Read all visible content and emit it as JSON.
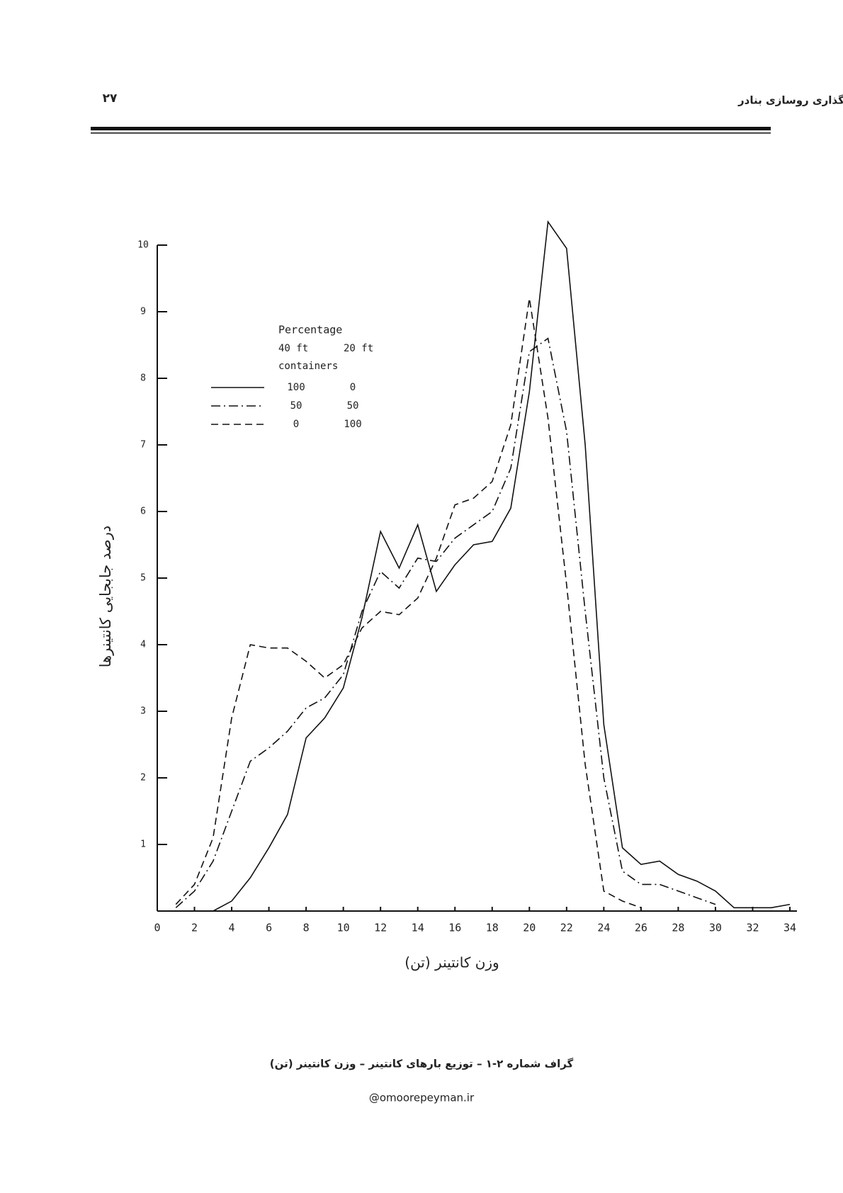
{
  "header": {
    "page_number": "۲۷",
    "title": "فصل دوم ـ بارگذاری روسازی بنادر"
  },
  "chart_data": {
    "type": "line",
    "x_label": "وزن کانتینر (تن)",
    "y_label": "درصد جابجایی کانتینرها",
    "legend": {
      "title": "Percentage",
      "columns": [
        "40 ft",
        "20 ft"
      ],
      "subtitle": "containers"
    },
    "x": [
      0,
      1,
      2,
      3,
      4,
      5,
      6,
      7,
      8,
      9,
      10,
      11,
      12,
      13,
      14,
      15,
      16,
      17,
      18,
      19,
      20,
      21,
      22,
      23,
      24,
      25,
      26,
      27,
      28,
      29,
      30,
      31,
      32,
      33,
      34
    ],
    "xlim": [
      0,
      34
    ],
    "xticks": [
      0,
      2,
      4,
      6,
      8,
      10,
      12,
      14,
      16,
      18,
      20,
      22,
      24,
      26,
      28,
      30,
      32,
      34
    ],
    "ylim": [
      0,
      10
    ],
    "yticks": [
      1,
      2,
      3,
      4,
      5,
      6,
      7,
      8,
      9,
      10
    ],
    "series": [
      {
        "labels": [
          "100",
          "0"
        ],
        "color": "#111111",
        "dash": "solid",
        "values": [
          null,
          null,
          null,
          0,
          0.15,
          0.5,
          0.95,
          1.45,
          2.6,
          2.9,
          3.35,
          4.4,
          5.7,
          5.15,
          5.8,
          4.8,
          5.2,
          5.5,
          5.55,
          6.05,
          7.8,
          10.35,
          9.95,
          7,
          2.8,
          0.95,
          0.7,
          0.75,
          0.55,
          0.45,
          0.3,
          0.05,
          0.05,
          0.05,
          0.1
        ]
      },
      {
        "labels": [
          "50",
          "50"
        ],
        "color": "#111111",
        "dash": "dashdot",
        "values": [
          null,
          0.05,
          0.3,
          0.75,
          1.5,
          2.25,
          2.45,
          2.7,
          3.05,
          3.2,
          3.55,
          4.5,
          5.1,
          4.85,
          5.3,
          5.25,
          5.6,
          5.8,
          6.0,
          6.65,
          8.4,
          8.6,
          7.2,
          4.5,
          2.0,
          0.6,
          0.4,
          0.4,
          0.3,
          0.2,
          0.1,
          null,
          null,
          null,
          null
        ]
      },
      {
        "labels": [
          "0",
          "100"
        ],
        "color": "#111111",
        "dash": "dashed",
        "values": [
          null,
          0.1,
          0.4,
          1.1,
          2.9,
          4.0,
          3.95,
          3.95,
          3.75,
          3.5,
          3.7,
          4.25,
          4.5,
          4.45,
          4.7,
          5.3,
          6.1,
          6.2,
          6.45,
          7.3,
          9.2,
          7.4,
          4.9,
          2.2,
          0.3,
          0.15,
          0.05,
          null,
          null,
          null,
          null,
          null,
          null,
          null,
          null
        ]
      }
    ]
  },
  "caption": "گراف شماره ۲-۱ – توزیع بارهای کانتینر – وزن کانتینر (تن)",
  "footer": "@omoorepeyman.ir"
}
